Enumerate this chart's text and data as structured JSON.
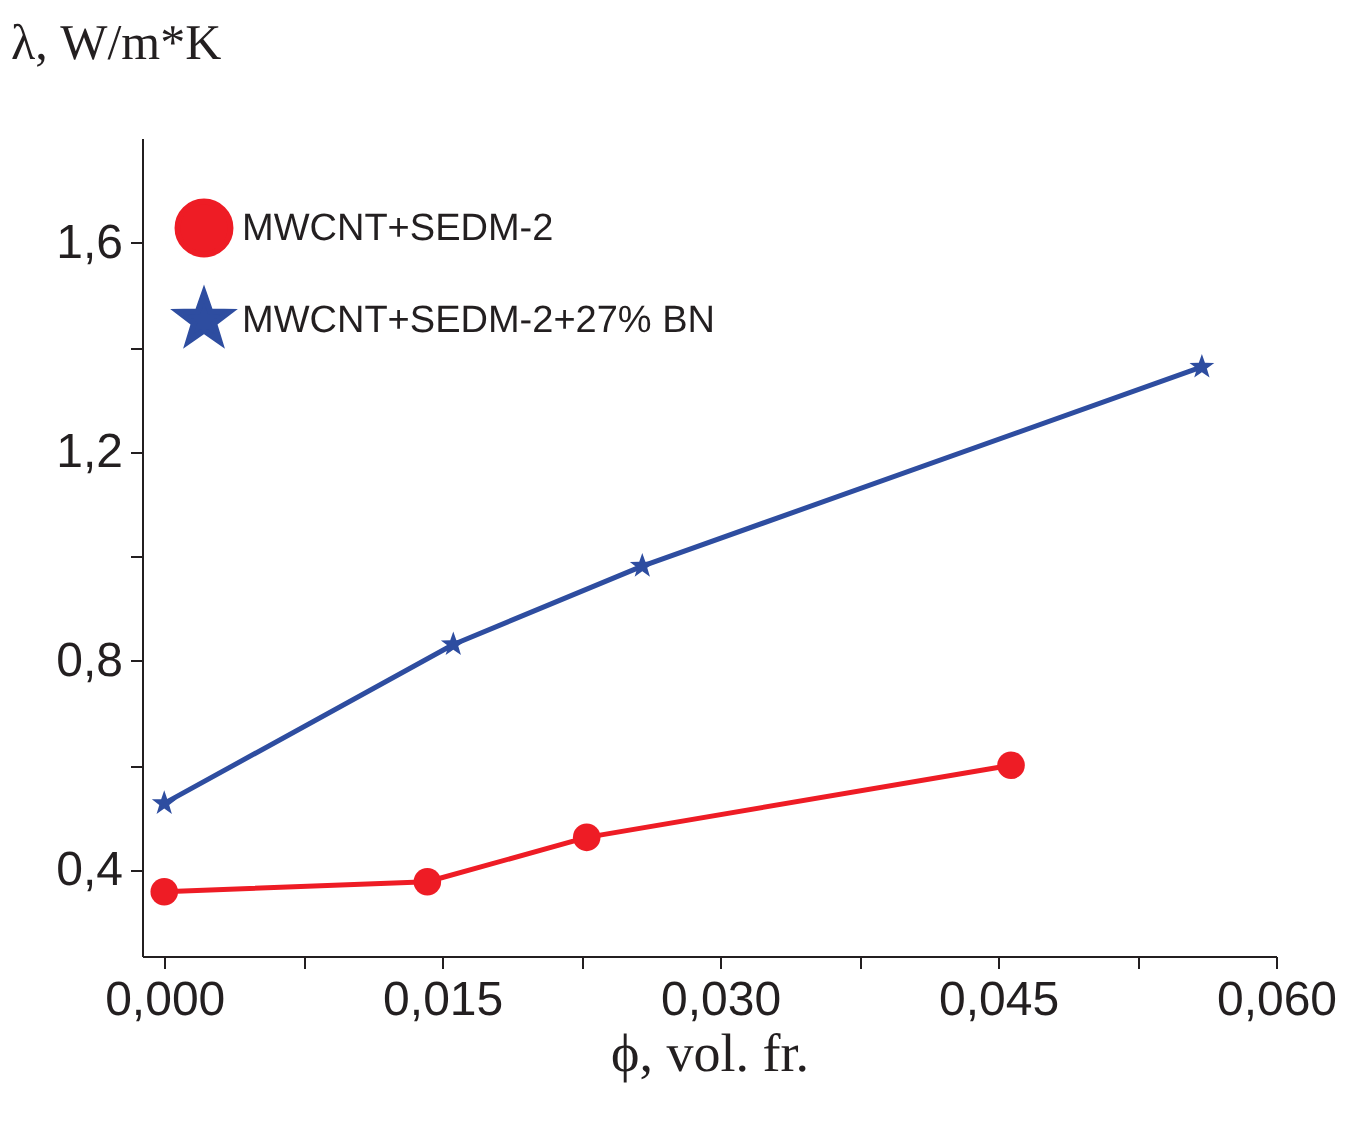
{
  "chart_data": {
    "type": "line",
    "xlabel": "ϕ, vol. fr.",
    "ylabel": "λ, W/m*K",
    "xlim": [
      -0.0012,
      0.06
    ],
    "xticks": [
      {
        "value": 0,
        "label": "0,000"
      },
      {
        "value": 0.0075,
        "label": null
      },
      {
        "value": 0.015,
        "label": "0,015"
      },
      {
        "value": 0.0225,
        "label": null
      },
      {
        "value": 0.03,
        "label": "0,030"
      },
      {
        "value": 0.0375,
        "label": null
      },
      {
        "value": 0.045,
        "label": "0,045"
      },
      {
        "value": 0.0525,
        "label": null
      },
      {
        "value": 0.06,
        "label": "0,060"
      }
    ],
    "ylim": [
      0.235,
      1.8
    ],
    "yticks": [
      {
        "value": 0.4,
        "label": "0,4"
      },
      {
        "value": 0.6,
        "label": null
      },
      {
        "value": 0.8,
        "label": "0,8"
      },
      {
        "value": 1.0,
        "label": null
      },
      {
        "value": 1.2,
        "label": "1,2"
      },
      {
        "value": 1.4,
        "label": null
      },
      {
        "value": 1.6,
        "label": "1,6"
      }
    ],
    "grid": false,
    "legend": "top left",
    "series": [
      {
        "name": "MWCNT+SEDM-2",
        "color": "#ee1c25",
        "marker": "circle",
        "x": [
          0,
          0.0142,
          0.0228,
          0.0457
        ],
        "values": [
          0.358,
          0.377,
          0.462,
          0.6
        ]
      },
      {
        "name": "MWCNT+SEDM-2+27% BN",
        "color": "#2e4da0",
        "marker": "star",
        "x": [
          0,
          0.0156,
          0.0258,
          0.056
        ],
        "values": [
          0.527,
          0.831,
          0.981,
          1.362
        ]
      }
    ]
  }
}
